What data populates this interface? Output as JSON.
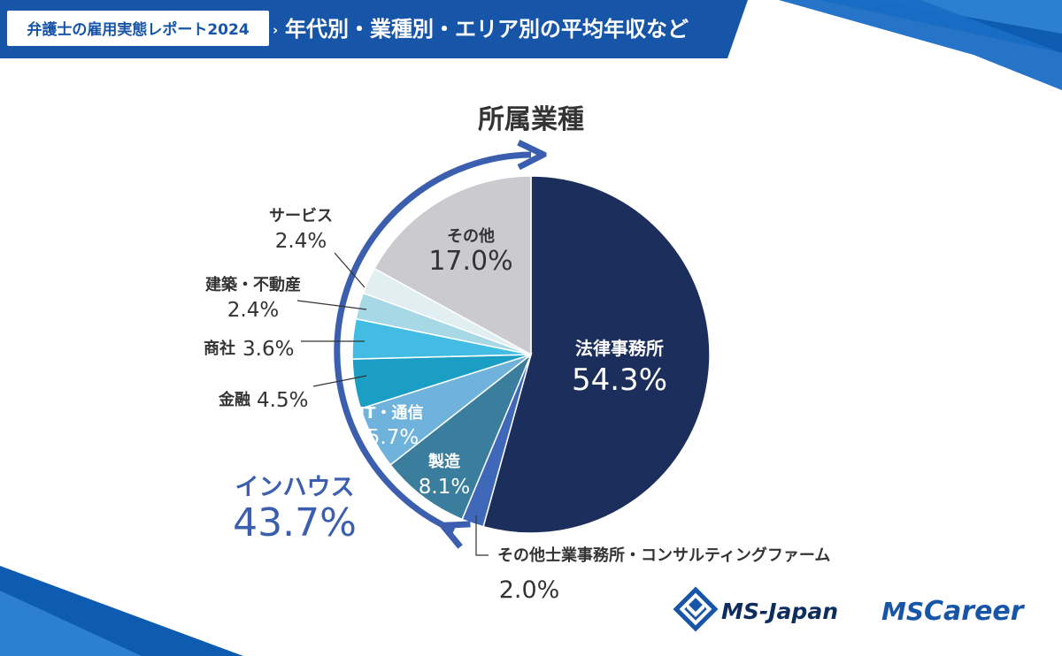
{
  "header": {
    "badge": "弁護士の雇用実態レポート2024",
    "title": "年代別・業種別・エリア別の平均年収など"
  },
  "chart_data": {
    "type": "pie",
    "title": "所属業種",
    "slices": [
      {
        "label": "法律事務所",
        "value": 54.3,
        "display": "54.3%",
        "color": "#1c2f5c"
      },
      {
        "label": "その他士業事務所・コンサルティングファーム",
        "value": 2.0,
        "display": "2.0%",
        "color": "#3f68b8"
      },
      {
        "label": "製造",
        "value": 8.1,
        "display": "8.1%",
        "color": "#3b7d9c"
      },
      {
        "label": "IT・通信",
        "value": 5.7,
        "display": "5.7%",
        "color": "#6fb3dc"
      },
      {
        "label": "金融",
        "value": 4.5,
        "display": "4.5%",
        "color": "#1a9ec4"
      },
      {
        "label": "商社",
        "value": 3.6,
        "display": "3.6%",
        "color": "#42bce2"
      },
      {
        "label": "建築・不動産",
        "value": 2.4,
        "display": "2.4%",
        "color": "#a6d8e6"
      },
      {
        "label": "サービス",
        "value": 2.4,
        "display": "2.4%",
        "color": "#e1eff2"
      },
      {
        "label": "その他",
        "value": 17.0,
        "display": "17.0%",
        "color": "#cbcbcf"
      }
    ],
    "group": {
      "label": "インハウス",
      "value": 43.7,
      "display": "43.7%"
    }
  },
  "logos": {
    "ms_japan": "MS-Japan",
    "ms_career_ms": "MS",
    "ms_career_rest": "Career"
  },
  "colors": {
    "brand_blue": "#1755a8",
    "brand_dark": "#0c3f7a",
    "accent": "#3b5fae"
  }
}
